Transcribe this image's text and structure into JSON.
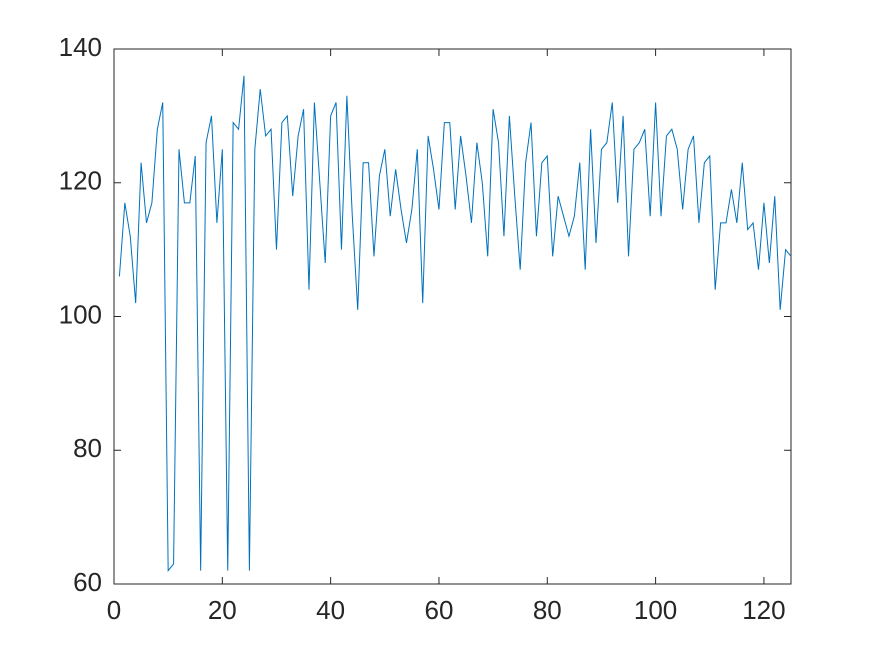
{
  "chart_data": {
    "type": "line",
    "x": [
      1,
      2,
      3,
      4,
      5,
      6,
      7,
      8,
      9,
      10,
      11,
      12,
      13,
      14,
      15,
      16,
      17,
      18,
      19,
      20,
      21,
      22,
      23,
      24,
      25,
      26,
      27,
      28,
      29,
      30,
      31,
      32,
      33,
      34,
      35,
      36,
      37,
      38,
      39,
      40,
      41,
      42,
      43,
      44,
      45,
      46,
      47,
      48,
      49,
      50,
      51,
      52,
      53,
      54,
      55,
      56,
      57,
      58,
      59,
      60,
      61,
      62,
      63,
      64,
      65,
      66,
      67,
      68,
      69,
      70,
      71,
      72,
      73,
      74,
      75,
      76,
      77,
      78,
      79,
      80,
      81,
      82,
      83,
      84,
      85,
      86,
      87,
      88,
      89,
      90,
      91,
      92,
      93,
      94,
      95,
      96,
      97,
      98,
      99,
      100,
      101,
      102,
      103,
      104,
      105,
      106,
      107,
      108,
      109,
      110,
      111,
      112,
      113,
      114,
      115,
      116,
      117,
      118,
      119,
      120,
      121,
      122,
      123,
      124,
      125
    ],
    "series": [
      {
        "color": "#0072bd",
        "values": [
          106,
          117,
          112,
          102,
          123,
          114,
          117,
          128,
          132,
          62,
          63,
          125,
          117,
          117,
          124,
          62,
          126,
          130,
          114,
          125,
          62,
          129,
          128,
          136,
          62,
          125,
          134,
          127,
          128,
          110,
          129,
          130,
          118,
          127,
          131,
          104,
          132,
          120,
          108,
          130,
          132,
          110,
          133,
          115,
          101,
          123,
          123,
          109,
          121,
          125,
          115,
          122,
          116,
          111,
          116,
          125,
          102,
          127,
          122,
          116,
          129,
          129,
          116,
          127,
          121,
          114,
          126,
          120,
          109,
          131,
          126,
          112,
          130,
          118,
          107,
          123,
          129,
          112,
          123,
          124,
          109,
          118,
          115,
          112,
          115,
          123,
          107,
          128,
          111,
          125,
          126,
          132,
          117,
          130,
          109,
          125,
          126,
          128,
          115,
          132,
          115,
          127,
          128,
          125,
          116,
          125,
          127,
          114,
          123,
          124,
          104,
          114,
          114,
          119,
          114,
          123,
          113,
          114,
          107,
          117,
          108,
          118,
          101,
          110,
          109
        ]
      }
    ],
    "xlim": [
      0,
      125
    ],
    "xticks": [
      0,
      20,
      40,
      60,
      80,
      100,
      120
    ],
    "ylim": [
      60,
      140
    ],
    "yticks": [
      60,
      80,
      100,
      120,
      140
    ]
  }
}
